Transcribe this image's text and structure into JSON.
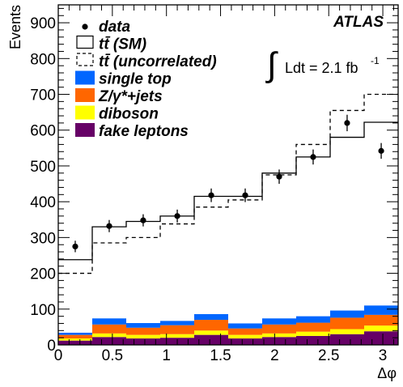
{
  "chart_data": {
    "type": "histogram",
    "xlabel": "Δφ",
    "ylabel": "Events",
    "xlim": [
      0,
      3.14159
    ],
    "ylim": [
      0,
      950
    ],
    "bin_edges": [
      0,
      0.3142,
      0.6283,
      0.9425,
      1.2566,
      1.5708,
      1.885,
      2.1991,
      2.5133,
      2.8274,
      3.1416
    ],
    "x_ticks": [
      0,
      0.5,
      1,
      1.5,
      2,
      2.5,
      3
    ],
    "x_tick_labels": [
      "0",
      "0.5",
      "1",
      "1.5",
      "2",
      "2.5",
      "3"
    ],
    "y_ticks": [
      0,
      100,
      200,
      300,
      400,
      500,
      600,
      700,
      800,
      900
    ],
    "y_tick_labels": [
      "0",
      "100",
      "200",
      "300",
      "400",
      "500",
      "600",
      "700",
      "800",
      "900"
    ],
    "experiment_label": "ATLAS",
    "luminosity_label": "∫ Ldt = 2.1 fb⁻¹",
    "lumi_text": "Ldt = 2.1 fb",
    "lumi_exponent": "-1",
    "stacked_series": [
      {
        "name": "fake leptons",
        "color": "#660066",
        "values": [
          12,
          22,
          18,
          20,
          28,
          18,
          22,
          25,
          30,
          38
        ]
      },
      {
        "name": "diboson",
        "color": "#ffff00",
        "values": [
          6,
          10,
          10,
          10,
          12,
          10,
          10,
          12,
          14,
          16
        ]
      },
      {
        "name": "Z/γ*+jets",
        "color": "#ff6600",
        "values": [
          10,
          25,
          20,
          25,
          30,
          18,
          25,
          25,
          32,
          30
        ]
      },
      {
        "name": "single top",
        "color": "#0066ff",
        "values": [
          6,
          17,
          13,
          12,
          16,
          14,
          17,
          18,
          20,
          26
        ]
      }
    ],
    "line_series": [
      {
        "name": "tt̄ (SM)",
        "style": "solid",
        "values": [
          238,
          330,
          345,
          360,
          415,
          415,
          480,
          525,
          580,
          622
        ]
      },
      {
        "name": "tt̄ (uncorrelated)",
        "style": "dashed",
        "values": [
          200,
          285,
          300,
          338,
          385,
          405,
          475,
          560,
          655,
          700
        ]
      }
    ],
    "data_points": {
      "name": "data",
      "x": [
        0.157,
        0.471,
        0.785,
        1.1,
        1.414,
        1.728,
        2.042,
        2.356,
        2.67,
        2.985
      ],
      "y": [
        275,
        332,
        348,
        360,
        418,
        418,
        470,
        525,
        620,
        542
      ],
      "err": [
        16,
        17,
        17,
        18,
        19,
        19,
        20,
        21,
        23,
        22
      ]
    },
    "legend": [
      {
        "label": "data",
        "marker": "point"
      },
      {
        "label": "tt̄ (SM)",
        "marker": "solid-box"
      },
      {
        "label": "tt̄ (uncorrelated)",
        "marker": "dashed-box"
      },
      {
        "label": "single top",
        "marker": "fill",
        "color": "#0066ff"
      },
      {
        "label": "Z/γ*+jets",
        "marker": "fill",
        "color": "#ff6600"
      },
      {
        "label": "diboson",
        "marker": "fill",
        "color": "#ffff00"
      },
      {
        "label": "fake leptons",
        "marker": "fill",
        "color": "#660066"
      }
    ]
  }
}
